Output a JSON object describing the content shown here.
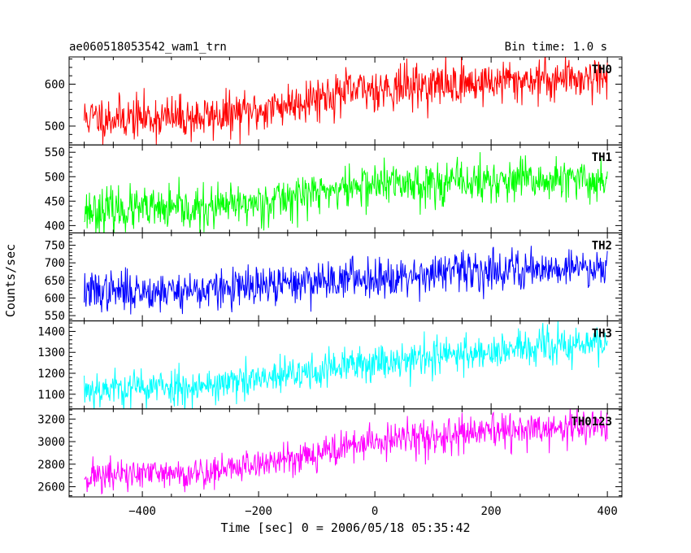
{
  "header": {
    "title": "ae060518053542_wam1_trn",
    "bin_time": "Bin time: 1.0 s"
  },
  "chart_data": {
    "type": "line",
    "xlabel": "Time [sec] 0 = 2006/05/18 05:35:42",
    "ylabel": "Counts/sec",
    "x_range": [
      -500,
      400
    ],
    "xlim": [
      -526,
      425
    ],
    "x_ticks": [
      -400,
      -200,
      0,
      200,
      400
    ],
    "x_tick_labels": [
      "−400",
      "−200",
      "0",
      "200",
      "400"
    ],
    "grid": false,
    "panels": [
      {
        "name": "TH0",
        "color": "#ff0000",
        "ylim": [
          455,
          665
        ],
        "yticks": [
          500,
          600
        ],
        "yticklabels": [
          "500",
          "600"
        ],
        "trend": [
          [
            -500,
            520
          ],
          [
            -300,
            520
          ],
          [
            -200,
            535
          ],
          [
            -100,
            570
          ],
          [
            0,
            590
          ],
          [
            200,
            605
          ],
          [
            400,
            620
          ]
        ],
        "noise": 26,
        "seed": 11
      },
      {
        "name": "TH1",
        "color": "#00ff00",
        "ylim": [
          385,
          565
        ],
        "yticks": [
          400,
          450,
          500,
          550
        ],
        "yticklabels": [
          "400",
          "450",
          "500",
          "550"
        ],
        "trend": [
          [
            -500,
            432
          ],
          [
            -300,
            432
          ],
          [
            -200,
            447
          ],
          [
            -100,
            468
          ],
          [
            0,
            485
          ],
          [
            200,
            490
          ],
          [
            400,
            492
          ]
        ],
        "noise": 22,
        "seed": 23
      },
      {
        "name": "TH2",
        "color": "#0000ff",
        "ylim": [
          535,
          785
        ],
        "yticks": [
          550,
          600,
          650,
          700,
          750
        ],
        "yticklabels": [
          "550",
          "600",
          "650",
          "700",
          "750"
        ],
        "trend": [
          [
            -500,
            618
          ],
          [
            -300,
            622
          ],
          [
            -200,
            630
          ],
          [
            -100,
            650
          ],
          [
            0,
            660
          ],
          [
            200,
            680
          ],
          [
            400,
            690
          ]
        ],
        "noise": 28,
        "seed": 37
      },
      {
        "name": "TH3",
        "color": "#00ffff",
        "ylim": [
          1030,
          1450
        ],
        "yticks": [
          1100,
          1200,
          1300,
          1400
        ],
        "yticklabels": [
          "1100",
          "1200",
          "1300",
          "1400"
        ],
        "trend": [
          [
            -500,
            1125
          ],
          [
            -300,
            1140
          ],
          [
            -200,
            1165
          ],
          [
            -100,
            1210
          ],
          [
            0,
            1255
          ],
          [
            200,
            1305
          ],
          [
            400,
            1345
          ]
        ],
        "noise": 45,
        "seed": 53
      },
      {
        "name": "TH0123",
        "color": "#ff00ff",
        "ylim": [
          2510,
          3290
        ],
        "yticks": [
          2600,
          2800,
          3000,
          3200
        ],
        "yticklabels": [
          "2600",
          "2800",
          "3000",
          "3200"
        ],
        "trend": [
          [
            -500,
            2695
          ],
          [
            -300,
            2720
          ],
          [
            -200,
            2800
          ],
          [
            -100,
            2900
          ],
          [
            0,
            3000
          ],
          [
            200,
            3080
          ],
          [
            400,
            3140
          ]
        ],
        "noise": 75,
        "seed": 71
      }
    ]
  }
}
